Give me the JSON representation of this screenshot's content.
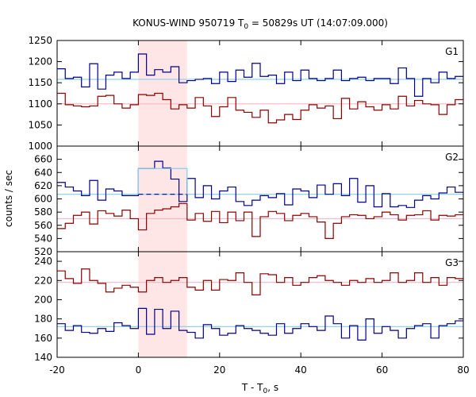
{
  "chart_data": {
    "type": "line",
    "title_main": "KONUS-WIND 950719 T",
    "title_sub": "0",
    "title_rest": " = 50829s UT (14:07:09.000)",
    "xlabel_main": "T - T",
    "xlabel_sub": "0",
    "xlabel_rest": ", s",
    "ylabel": "counts / sec",
    "xlim": [
      -20,
      80
    ],
    "x_ticks": [
      -20,
      0,
      20,
      40,
      60,
      80
    ],
    "highlight": {
      "x_start": 0,
      "x_end": 12,
      "color": "#ffe6e6"
    },
    "colors": {
      "blue": "#00008b",
      "red": "#8b0000",
      "light_blue": "#87ceeb",
      "pink": "#ffb6c1",
      "dash_blue": "#00008b"
    },
    "bin_edges": [
      -20,
      -18,
      -16,
      -14,
      -12,
      -10,
      -8,
      -6,
      -4,
      -2,
      0,
      2,
      4,
      6,
      8,
      10,
      12,
      14,
      16,
      18,
      20,
      22,
      24,
      26,
      28,
      30,
      32,
      34,
      36,
      38,
      40,
      42,
      44,
      46,
      48,
      50,
      52,
      54,
      56,
      58,
      60,
      62,
      64,
      66,
      68,
      70,
      72,
      74,
      76,
      78,
      80
    ],
    "panels": [
      {
        "label": "G1",
        "ylim": [
          1000,
          1250
        ],
        "y_ticks": [
          1000,
          1050,
          1100,
          1150,
          1200,
          1250
        ],
        "blue_bg": 1158,
        "red_bg": 1100,
        "blue_values": [
          1183,
          1160,
          1163,
          1140,
          1195,
          1135,
          1168,
          1175,
          1160,
          1175,
          1218,
          1168,
          1181,
          1175,
          1188,
          1150,
          1155,
          1158,
          1160,
          1148,
          1175,
          1153,
          1180,
          1163,
          1196,
          1165,
          1168,
          1148,
          1175,
          1155,
          1180,
          1160,
          1155,
          1160,
          1180,
          1155,
          1160,
          1163,
          1155,
          1160,
          1160,
          1148,
          1185,
          1160,
          1118,
          1160,
          1150,
          1175,
          1160,
          1165
        ],
        "red_values": [
          1125,
          1098,
          1095,
          1093,
          1095,
          1118,
          1120,
          1100,
          1090,
          1098,
          1122,
          1120,
          1125,
          1110,
          1088,
          1098,
          1090,
          1115,
          1095,
          1070,
          1093,
          1115,
          1085,
          1080,
          1068,
          1085,
          1055,
          1062,
          1075,
          1063,
          1085,
          1098,
          1090,
          1095,
          1065,
          1113,
          1088,
          1105,
          1093,
          1085,
          1098,
          1088,
          1118,
          1095,
          1108,
          1100,
          1098,
          1075,
          1098,
          1110
        ]
      },
      {
        "label": "G2",
        "ylim": [
          520,
          680
        ],
        "y_ticks": [
          520,
          540,
          560,
          580,
          600,
          620,
          640,
          660
        ],
        "blue_bg": 607,
        "red_bg": 570,
        "blue_values": [
          625,
          618,
          612,
          605,
          628,
          598,
          615,
          612,
          605,
          605,
          646,
          646,
          657,
          647,
          630,
          596,
          631,
          602,
          620,
          600,
          612,
          618,
          596,
          590,
          598,
          605,
          602,
          608,
          591,
          615,
          612,
          602,
          621,
          607,
          623,
          605,
          631,
          595,
          620,
          588,
          608,
          588,
          590,
          587,
          598,
          605,
          600,
          609,
          618,
          610
        ],
        "red_values": [
          555,
          563,
          575,
          580,
          562,
          582,
          578,
          574,
          583,
          570,
          553,
          578,
          583,
          585,
          588,
          593,
          568,
          578,
          566,
          581,
          564,
          580,
          567,
          580,
          543,
          573,
          581,
          578,
          567,
          575,
          578,
          573,
          565,
          540,
          563,
          573,
          576,
          575,
          570,
          573,
          580,
          576,
          568,
          575,
          576,
          582,
          568,
          575,
          574,
          576
        ],
        "dash_value": 607,
        "dash_x": [
          0,
          12
        ]
      },
      {
        "label": "G3",
        "ylim": [
          140,
          250
        ],
        "y_ticks": [
          140,
          160,
          180,
          200,
          220,
          240
        ],
        "blue_bg": 172,
        "red_bg": 218,
        "blue_values": [
          175,
          168,
          173,
          166,
          165,
          170,
          167,
          176,
          173,
          170,
          191,
          164,
          190,
          170,
          188,
          168,
          166,
          160,
          174,
          170,
          163,
          165,
          173,
          170,
          168,
          165,
          163,
          175,
          165,
          170,
          175,
          172,
          168,
          183,
          175,
          160,
          173,
          158,
          180,
          165,
          172,
          168,
          160,
          170,
          173,
          175,
          160,
          173,
          175,
          178
        ],
        "red_values": [
          230,
          222,
          217,
          232,
          220,
          217,
          208,
          212,
          215,
          213,
          208,
          220,
          223,
          218,
          220,
          223,
          213,
          210,
          220,
          210,
          221,
          220,
          228,
          218,
          205,
          227,
          226,
          218,
          223,
          215,
          218,
          223,
          225,
          220,
          218,
          215,
          220,
          218,
          222,
          218,
          220,
          228,
          218,
          220,
          228,
          218,
          223,
          215,
          223,
          222
        ]
      }
    ]
  }
}
